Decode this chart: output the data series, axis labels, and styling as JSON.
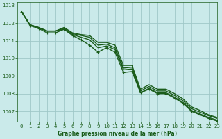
{
  "title": "Graphe pression niveau de la mer (hPa)",
  "background_color": "#caeaea",
  "grid_color": "#a0c8c8",
  "line_color": "#1a5c1a",
  "xlim": [
    -0.5,
    23
  ],
  "ylim": [
    1006.4,
    1013.2
  ],
  "yticks": [
    1007,
    1008,
    1009,
    1010,
    1011,
    1012,
    1013
  ],
  "xticks": [
    0,
    1,
    2,
    3,
    4,
    5,
    6,
    7,
    8,
    9,
    10,
    11,
    12,
    13,
    14,
    15,
    16,
    17,
    18,
    19,
    20,
    21,
    22,
    23
  ],
  "series": [
    {
      "y": [
        1012.65,
        1011.9,
        1011.75,
        1011.55,
        1011.55,
        1011.75,
        1011.45,
        1011.35,
        1011.3,
        1010.9,
        1010.9,
        1010.75,
        1009.6,
        1009.6,
        1008.25,
        1008.5,
        1008.25,
        1008.25,
        1008.0,
        1007.7,
        1007.25,
        1007.05,
        1006.8,
        1006.65
      ],
      "marker": false,
      "lw": 1.0
    },
    {
      "y": [
        1012.65,
        1011.9,
        1011.75,
        1011.55,
        1011.55,
        1011.7,
        1011.4,
        1011.3,
        1011.2,
        1010.75,
        1010.8,
        1010.6,
        1009.45,
        1009.5,
        1008.15,
        1008.4,
        1008.15,
        1008.15,
        1007.9,
        1007.6,
        1007.15,
        1006.95,
        1006.75,
        1006.6
      ],
      "marker": false,
      "lw": 1.0
    },
    {
      "y": [
        1012.65,
        1011.9,
        1011.75,
        1011.55,
        1011.55,
        1011.65,
        1011.35,
        1011.2,
        1011.05,
        1010.6,
        1010.7,
        1010.5,
        1009.35,
        1009.4,
        1008.05,
        1008.3,
        1008.05,
        1008.05,
        1007.8,
        1007.5,
        1007.05,
        1006.85,
        1006.65,
        1006.5
      ],
      "marker": false,
      "lw": 1.0
    },
    {
      "y": [
        1012.65,
        1011.85,
        1011.7,
        1011.45,
        1011.45,
        1011.65,
        1011.3,
        1011.05,
        1010.75,
        1010.35,
        1010.6,
        1010.35,
        1009.2,
        1009.25,
        1008.05,
        1008.25,
        1008.0,
        1008.0,
        1007.75,
        1007.45,
        1007.0,
        1006.8,
        1006.6,
        1006.45
      ],
      "marker": true,
      "lw": 1.0
    }
  ]
}
